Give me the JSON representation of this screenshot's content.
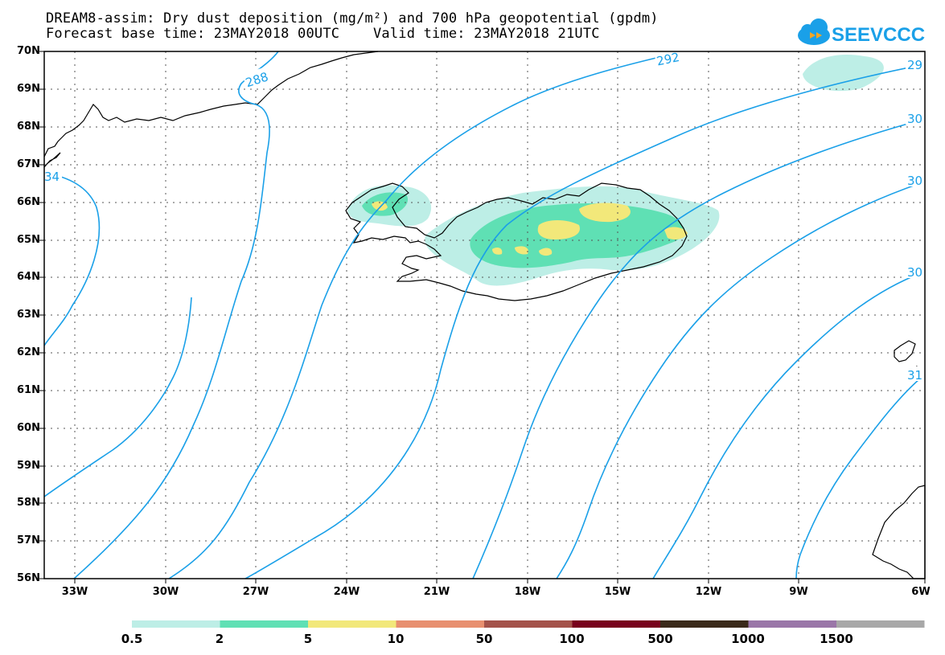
{
  "title": {
    "line1": "DREAM8-assim: Dry dust deposition (mg/m²) and 700 hPa geopotential (gpdm)",
    "line2": "Forecast base time: 23MAY2018 00UTC    Valid time: 23MAY2018 21UTC"
  },
  "logo": {
    "text": "SEEVCCC",
    "icon": "cloud-forward-icon"
  },
  "colors": {
    "contour": "#1aa0e8",
    "bins": [
      "#bdeee6",
      "#5fe0b4",
      "#f2e87a",
      "#e88f6f",
      "#a4524a",
      "#78001c",
      "#3a2a1a",
      "#9a76a8",
      "#a8a8a8"
    ]
  },
  "axes": {
    "lat_labels": [
      "70N",
      "69N",
      "68N",
      "67N",
      "66N",
      "65N",
      "64N",
      "63N",
      "62N",
      "61N",
      "60N",
      "59N",
      "58N",
      "57N",
      "56N"
    ],
    "lon_labels": [
      "33W",
      "30W",
      "27W",
      "24W",
      "21W",
      "18W",
      "15W",
      "12W",
      "9W",
      "6W"
    ],
    "grid": "dotted"
  },
  "contour_labels": [
    "288",
    "292",
    "29",
    "30",
    "30",
    "30",
    "31",
    "34"
  ],
  "colorbar": {
    "labels": [
      "0.5",
      "2",
      "5",
      "10",
      "50",
      "100",
      "500",
      "1000",
      "1500"
    ]
  }
}
